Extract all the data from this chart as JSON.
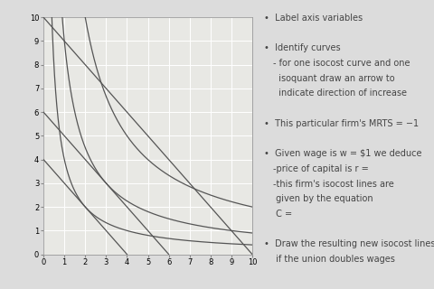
{
  "xlim": [
    0,
    10
  ],
  "ylim": [
    0,
    10
  ],
  "xticks": [
    0,
    1,
    2,
    3,
    4,
    5,
    6,
    7,
    8,
    9,
    10
  ],
  "yticks": [
    0,
    1,
    2,
    3,
    4,
    5,
    6,
    7,
    8,
    9,
    10
  ],
  "background_color": "#dcdcdc",
  "plot_bg_color": "#e8e8e4",
  "grid_color": "#ffffff",
  "curve_color": "#555555",
  "isoquant_levels": [
    4,
    9,
    20
  ],
  "isocost_intercepts": [
    4,
    6,
    10
  ],
  "text_lines": [
    {
      "indent": 0,
      "text": "•  Label axis variables"
    },
    {
      "indent": 0,
      "text": ""
    },
    {
      "indent": 0,
      "text": "•  Identify curves"
    },
    {
      "indent": 1,
      "text": "- for one isocost curve and one"
    },
    {
      "indent": 1,
      "text": "  isoquant draw an arrow to"
    },
    {
      "indent": 1,
      "text": "  indicate direction of increase"
    },
    {
      "indent": 0,
      "text": ""
    },
    {
      "indent": 0,
      "text": "•  This particular firm's MRTS = −1"
    },
    {
      "indent": 0,
      "text": ""
    },
    {
      "indent": 0,
      "text": "•  Given wage is w = $1 we deduce"
    },
    {
      "indent": 1,
      "text": "-price of capital is r ="
    },
    {
      "indent": 1,
      "text": "-this firm's isocost lines are"
    },
    {
      "indent": 1,
      "text": " given by the equation"
    },
    {
      "indent": 1,
      "text": " C ="
    },
    {
      "indent": 0,
      "text": ""
    },
    {
      "indent": 0,
      "text": "•  Draw the resulting new isocost lines"
    },
    {
      "indent": 1,
      "text": " if the union doubles wages"
    }
  ],
  "tick_fontsize": 6,
  "text_fontsize": 7,
  "text_color": "#444444"
}
